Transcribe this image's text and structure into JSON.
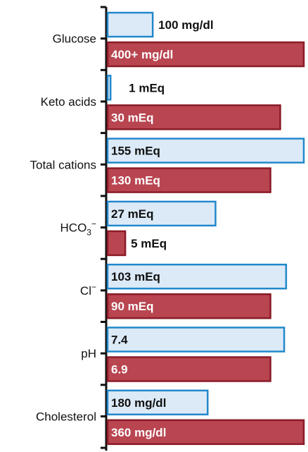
{
  "chart_data": {
    "type": "bar",
    "orientation": "horizontal",
    "title": "",
    "xlabel": "",
    "ylabel": "",
    "grid": false,
    "legend": "none",
    "categories": [
      {
        "label": "Glucose"
      },
      {
        "label": "Keto acids"
      },
      {
        "label": "Total cations"
      },
      {
        "label": "HCO",
        "sub": "3",
        "sup": "−"
      },
      {
        "label": "Cl",
        "sup": "−"
      },
      {
        "label": "pH"
      },
      {
        "label": "Cholesterol"
      }
    ],
    "series": [
      {
        "color": "#dceaf8",
        "stroke": "#2288cc",
        "values": [
          {
            "fill": 0.23,
            "label": "100 mg/dl"
          },
          {
            "fill": 0.015,
            "label": "1 mEq"
          },
          {
            "fill": 1.0,
            "label": "155 mEq"
          },
          {
            "fill": 0.55,
            "label": "27 mEq"
          },
          {
            "fill": 0.91,
            "label": "103 mEq"
          },
          {
            "fill": 0.9,
            "label": "7.4"
          },
          {
            "fill": 0.51,
            "label": "180 mg/dl"
          }
        ]
      },
      {
        "color": "#b84550",
        "stroke": "#8a1c28",
        "values": [
          {
            "fill": 1.0,
            "label": "400+ mg/dl"
          },
          {
            "fill": 0.88,
            "label": "30 mEq"
          },
          {
            "fill": 0.83,
            "label": "130 mEq"
          },
          {
            "fill": 0.09,
            "label": "5 mEq"
          },
          {
            "fill": 0.83,
            "label": "90 mEq"
          },
          {
            "fill": 0.83,
            "label": "6.9"
          },
          {
            "fill": 1.0,
            "label": "360 mg/dl"
          }
        ]
      }
    ]
  }
}
